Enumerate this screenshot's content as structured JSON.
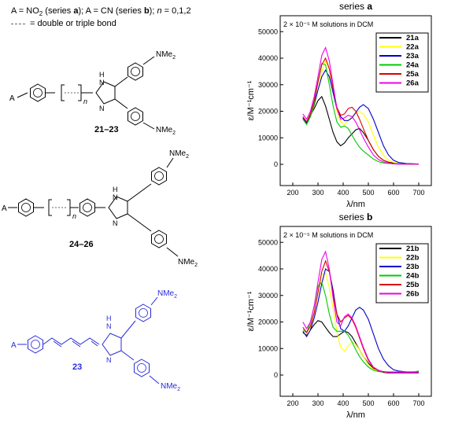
{
  "header": {
    "line1_prefix": "A = NO",
    "line1_sub": "2",
    "line1_mid1": " (series ",
    "line1_a": "a",
    "line1_mid2": "); A = CN (series ",
    "line1_b": "b",
    "line1_mid3": "); ",
    "line1_n": "n",
    "line1_end": " = 0,1,2",
    "line2": "= double or triple bond"
  },
  "structures": {
    "s1_label": "21–23",
    "s2_label": "24–26",
    "s3_label": "23",
    "A": "A",
    "n": "n",
    "NMe2_main": "NMe",
    "NMe2_sub": "2",
    "NH": "H",
    "N": "N",
    "N2": "N",
    "colors": {
      "black": "#000000",
      "blue": "#2a2adc"
    }
  },
  "chart_data": [
    {
      "type": "line",
      "title": "series a",
      "title_prefix": "series ",
      "title_bold": "a",
      "annotation": "2 × 10⁻⁵ M solutions in DCM",
      "xlabel": "λ/nm",
      "ylabel": "ε/M⁻¹cm⁻¹",
      "xlim": [
        150,
        750
      ],
      "ylim": [
        -8000,
        56000
      ],
      "xticks": [
        200,
        300,
        400,
        500,
        600,
        700
      ],
      "yticks": [
        0,
        10000,
        20000,
        30000,
        40000,
        50000
      ],
      "legend_position": "top-right",
      "series": [
        {
          "name": "21a",
          "color": "#000000",
          "x": [
            240,
            255,
            270,
            285,
            300,
            315,
            330,
            345,
            360,
            375,
            390,
            405,
            420,
            435,
            450,
            465,
            480,
            500,
            520,
            540,
            560,
            580,
            600,
            620,
            650,
            680,
            700
          ],
          "y": [
            17000,
            16000,
            18500,
            21000,
            24000,
            25500,
            22000,
            17000,
            12000,
            8500,
            7000,
            8000,
            10000,
            11500,
            13000,
            13500,
            12000,
            9000,
            5500,
            3000,
            1500,
            800,
            500,
            300,
            200,
            100,
            100
          ]
        },
        {
          "name": "22a",
          "color": "#ffff00",
          "x": [
            240,
            255,
            270,
            285,
            300,
            315,
            330,
            345,
            360,
            375,
            390,
            405,
            420,
            435,
            450,
            465,
            480,
            500,
            520,
            540,
            560,
            580,
            600,
            620,
            650,
            680,
            700
          ],
          "y": [
            17500,
            15500,
            18000,
            22000,
            28000,
            35000,
            39000,
            36000,
            28000,
            20000,
            16000,
            15000,
            16500,
            18000,
            19500,
            20000,
            19000,
            16000,
            11000,
            6500,
            3500,
            1500,
            700,
            300,
            200,
            100,
            100
          ]
        },
        {
          "name": "23a",
          "color": "#0000cc",
          "x": [
            240,
            255,
            270,
            285,
            300,
            315,
            330,
            345,
            360,
            375,
            390,
            405,
            420,
            435,
            450,
            465,
            480,
            500,
            520,
            540,
            560,
            580,
            600,
            620,
            650,
            680,
            700
          ],
          "y": [
            17500,
            15500,
            18000,
            22500,
            28000,
            33000,
            35500,
            33000,
            27000,
            21000,
            18000,
            16500,
            16500,
            17500,
            19500,
            21500,
            22500,
            21000,
            17000,
            12000,
            7000,
            3500,
            1500,
            700,
            300,
            200,
            100
          ]
        },
        {
          "name": "24a",
          "color": "#00cc00",
          "x": [
            240,
            255,
            270,
            285,
            300,
            315,
            330,
            345,
            360,
            375,
            390,
            405,
            420,
            435,
            450,
            465,
            480,
            500,
            520,
            540,
            560,
            580,
            600,
            620,
            650,
            680,
            700
          ],
          "y": [
            17000,
            15000,
            18000,
            23000,
            31000,
            38000,
            37500,
            30000,
            22000,
            16000,
            14000,
            14500,
            13500,
            11000,
            8500,
            6500,
            5000,
            3500,
            2000,
            1000,
            500,
            300,
            200,
            100,
            100,
            100,
            100
          ]
        },
        {
          "name": "25a",
          "color": "#dd0000",
          "x": [
            240,
            255,
            270,
            285,
            300,
            315,
            330,
            345,
            360,
            375,
            390,
            405,
            420,
            435,
            450,
            465,
            480,
            500,
            520,
            540,
            560,
            580,
            600,
            620,
            650,
            680,
            700
          ],
          "y": [
            18000,
            16000,
            19000,
            24000,
            31000,
            37500,
            40000,
            36000,
            28500,
            21500,
            18500,
            19000,
            21000,
            21500,
            20000,
            17000,
            13500,
            9000,
            5500,
            3000,
            1500,
            700,
            300,
            200,
            100,
            100,
            100
          ]
        },
        {
          "name": "26a",
          "color": "#ee00ee",
          "x": [
            240,
            255,
            270,
            285,
            300,
            315,
            330,
            345,
            360,
            375,
            390,
            405,
            420,
            435,
            450,
            465,
            480,
            500,
            520,
            540,
            560,
            580,
            600,
            620,
            650,
            680,
            700
          ],
          "y": [
            19000,
            17000,
            20000,
            25500,
            33000,
            41000,
            44000,
            39000,
            30000,
            21000,
            17000,
            17500,
            18500,
            18000,
            16000,
            13000,
            10000,
            6500,
            3500,
            1800,
            900,
            400,
            200,
            100,
            100,
            100,
            100
          ]
        }
      ]
    },
    {
      "type": "line",
      "title": "series b",
      "title_prefix": "series ",
      "title_bold": "b",
      "annotation": "2 × 10⁻⁵ M solutions in DCM",
      "xlabel": "λ/nm",
      "ylabel": "ε/M⁻¹cm⁻¹",
      "xlim": [
        150,
        750
      ],
      "ylim": [
        -8000,
        56000
      ],
      "xticks": [
        200,
        300,
        400,
        500,
        600,
        700
      ],
      "yticks": [
        0,
        10000,
        20000,
        30000,
        40000,
        50000
      ],
      "legend_position": "top-right",
      "series": [
        {
          "name": "21b",
          "color": "#000000",
          "x": [
            240,
            255,
            270,
            285,
            300,
            315,
            330,
            345,
            360,
            375,
            390,
            405,
            420,
            435,
            450,
            465,
            480,
            500,
            520,
            540,
            560,
            580,
            600,
            620,
            650,
            680,
            700
          ],
          "y": [
            16000,
            15000,
            17000,
            19000,
            20500,
            20000,
            18000,
            16000,
            14500,
            14500,
            15500,
            16500,
            16000,
            14500,
            12000,
            9500,
            7000,
            4500,
            2500,
            1500,
            1000,
            800,
            800,
            800,
            800,
            800,
            800
          ]
        },
        {
          "name": "22b",
          "color": "#ffff00",
          "x": [
            240,
            255,
            270,
            285,
            300,
            315,
            330,
            345,
            360,
            375,
            390,
            405,
            420,
            435,
            450,
            465,
            480,
            500,
            520,
            540,
            560,
            580,
            600,
            620,
            650,
            680,
            700
          ],
          "y": [
            16500,
            14500,
            17500,
            23000,
            31000,
            38000,
            38500,
            33000,
            25000,
            16500,
            10500,
            9000,
            11000,
            12500,
            11500,
            9500,
            7000,
            4000,
            2200,
            1500,
            1200,
            1000,
            1000,
            1000,
            1000,
            1000,
            1000
          ]
        },
        {
          "name": "23b",
          "color": "#0000cc",
          "x": [
            240,
            255,
            270,
            285,
            300,
            315,
            330,
            345,
            360,
            375,
            390,
            405,
            420,
            435,
            450,
            465,
            480,
            500,
            520,
            540,
            560,
            580,
            600,
            620,
            650,
            680,
            700
          ],
          "y": [
            16500,
            14500,
            17000,
            21500,
            27500,
            34500,
            40000,
            39000,
            32000,
            23000,
            17500,
            16500,
            18500,
            21500,
            24500,
            25500,
            24500,
            21000,
            15500,
            10000,
            6000,
            3500,
            2000,
            1500,
            1200,
            1200,
            1200
          ]
        },
        {
          "name": "24b",
          "color": "#00cc00",
          "x": [
            240,
            255,
            270,
            285,
            300,
            315,
            330,
            345,
            360,
            375,
            390,
            405,
            420,
            435,
            450,
            465,
            480,
            500,
            520,
            540,
            560,
            580,
            600,
            620,
            650,
            680,
            700
          ],
          "y": [
            17000,
            16000,
            20000,
            26000,
            33500,
            35000,
            30000,
            23000,
            18000,
            16500,
            16500,
            16500,
            15000,
            12500,
            9500,
            7000,
            5000,
            3000,
            1800,
            1300,
            1200,
            1200,
            1200,
            1200,
            1200,
            1200,
            1500
          ]
        },
        {
          "name": "25b",
          "color": "#dd0000",
          "x": [
            240,
            255,
            270,
            285,
            300,
            315,
            330,
            345,
            360,
            375,
            390,
            405,
            420,
            435,
            450,
            465,
            480,
            500,
            520,
            540,
            560,
            580,
            600,
            620,
            650,
            680,
            700
          ],
          "y": [
            18000,
            16000,
            18500,
            23500,
            31000,
            39000,
            43000,
            39000,
            30500,
            23000,
            20000,
            21500,
            22500,
            21000,
            18000,
            14000,
            10000,
            5500,
            2800,
            1600,
            1200,
            1000,
            1000,
            1000,
            1000,
            1000,
            1000
          ]
        },
        {
          "name": "26b",
          "color": "#ee00ee",
          "x": [
            240,
            255,
            270,
            285,
            300,
            315,
            330,
            345,
            360,
            375,
            390,
            405,
            420,
            435,
            450,
            465,
            480,
            500,
            520,
            540,
            560,
            580,
            600,
            620,
            650,
            680,
            700
          ],
          "y": [
            20000,
            17500,
            20000,
            26000,
            35000,
            43500,
            46500,
            40000,
            29000,
            20000,
            18500,
            22000,
            23000,
            21500,
            18500,
            14500,
            10500,
            6000,
            3000,
            1800,
            1300,
            1100,
            1000,
            1000,
            1000,
            1000,
            1000
          ]
        }
      ]
    }
  ]
}
